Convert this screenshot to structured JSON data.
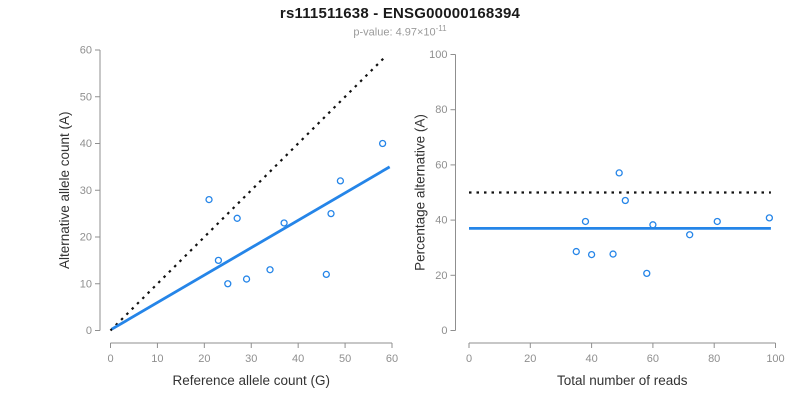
{
  "header": {
    "title": "rs111511638 - ENSG00000168394",
    "subtitle_text": "p-value: 4.97×10",
    "subtitle_exponent": "-11"
  },
  "colors": {
    "accent_blue": "#2585E8",
    "dotted_line": "#111111",
    "axis_gray": "#8f8f8f",
    "tick_label_gray": "#8f8f8f",
    "axis_title_dark": "#333333",
    "background": "#ffffff"
  },
  "chart_data": [
    {
      "type": "scatter",
      "panel": "left",
      "xlabel": "Reference allele count (G)",
      "ylabel": "Alternative allele count (A)",
      "xlim": [
        0,
        60
      ],
      "ylim": [
        0,
        60
      ],
      "xticks": [
        0,
        10,
        20,
        30,
        40,
        50,
        60
      ],
      "yticks": [
        0,
        10,
        20,
        30,
        40,
        50,
        60
      ],
      "grid": false,
      "points": [
        [
          21,
          28
        ],
        [
          23,
          15
        ],
        [
          25,
          10
        ],
        [
          27,
          24
        ],
        [
          29,
          11
        ],
        [
          34,
          13
        ],
        [
          37,
          23
        ],
        [
          46,
          12
        ],
        [
          47,
          25
        ],
        [
          49,
          32
        ],
        [
          58,
          40
        ]
      ],
      "lines": [
        {
          "name": "identity-line",
          "style": "dotted",
          "color": "#111111",
          "width": 2.2,
          "from": [
            0,
            0
          ],
          "to": [
            58.8,
            58.8
          ]
        },
        {
          "name": "fit-line",
          "style": "solid",
          "color": "#2585E8",
          "width": 2.8,
          "from": [
            0.3,
            0.3
          ],
          "to": [
            59.5,
            35.0
          ]
        }
      ]
    },
    {
      "type": "scatter",
      "panel": "right",
      "xlabel": "Total number of reads",
      "ylabel": "Percentage alternative (A)",
      "xlim": [
        0,
        100
      ],
      "ylim": [
        0,
        100
      ],
      "xticks": [
        0,
        20,
        40,
        60,
        80,
        100
      ],
      "yticks": [
        0,
        20,
        40,
        60,
        80,
        100
      ],
      "grid": false,
      "points": [
        [
          35,
          28.6
        ],
        [
          38,
          39.5
        ],
        [
          40,
          27.5
        ],
        [
          47,
          27.7
        ],
        [
          49,
          57.1
        ],
        [
          51,
          47.1
        ],
        [
          58,
          20.7
        ],
        [
          60,
          38.3
        ],
        [
          72,
          34.7
        ],
        [
          81,
          39.5
        ],
        [
          98,
          40.8
        ]
      ],
      "lines": [
        {
          "name": "fifty-percent-line",
          "style": "dotted",
          "color": "#111111",
          "width": 2.2,
          "from": [
            0,
            50
          ],
          "to": [
            98.5,
            50
          ]
        },
        {
          "name": "mean-percentage-line",
          "style": "solid",
          "color": "#2585E8",
          "width": 2.8,
          "from": [
            0,
            37.0
          ],
          "to": [
            98.5,
            37.0
          ]
        }
      ]
    }
  ]
}
